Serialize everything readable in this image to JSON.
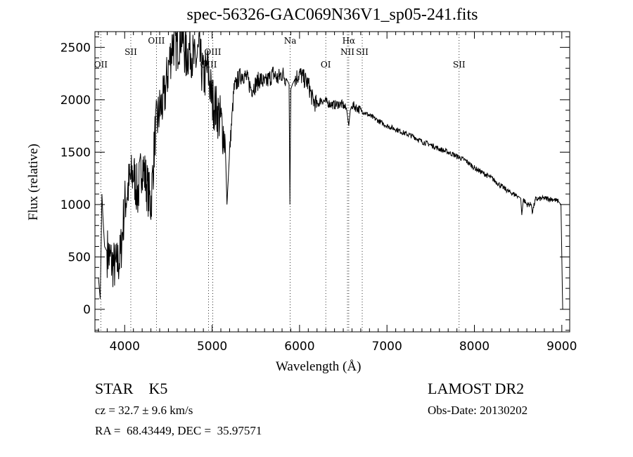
{
  "chart_data": {
    "type": "line",
    "title": "spec-56326-GAC069N36V1_sp05-241.fits",
    "xlabel": "Wavelength (Å)",
    "ylabel": "Flux (relative)",
    "xlim": [
      3660,
      9090
    ],
    "ylim": [
      -215,
      2650
    ],
    "xticks": [
      4000,
      5000,
      6000,
      7000,
      8000,
      9000
    ],
    "yticks": [
      0,
      500,
      1000,
      1500,
      2000,
      2500
    ],
    "grid": false,
    "series": [
      {
        "name": "spectrum",
        "x": [
          3700,
          3720,
          3740,
          3750,
          3770,
          3800,
          3850,
          3900,
          3950,
          4000,
          4050,
          4100,
          4150,
          4200,
          4250,
          4300,
          4350,
          4400,
          4450,
          4500,
          4550,
          4600,
          4650,
          4700,
          4750,
          4800,
          4850,
          4900,
          4950,
          5000,
          5050,
          5100,
          5150,
          5170,
          5200,
          5250,
          5300,
          5350,
          5400,
          5450,
          5500,
          5550,
          5600,
          5650,
          5700,
          5750,
          5800,
          5850,
          5880,
          5890,
          5900,
          5920,
          5950,
          6000,
          6050,
          6100,
          6150,
          6200,
          6250,
          6300,
          6350,
          6400,
          6450,
          6500,
          6540,
          6563,
          6580,
          6600,
          6700,
          6800,
          6900,
          7000,
          7100,
          7200,
          7300,
          7400,
          7500,
          7600,
          7700,
          7800,
          7900,
          8000,
          8100,
          8200,
          8300,
          8400,
          8500,
          8530,
          8542,
          8560,
          8600,
          8650,
          8662,
          8700,
          8800,
          8900,
          8960,
          8990,
          9000,
          9010
        ],
        "y": [
          300,
          100,
          1100,
          900,
          600,
          550,
          450,
          400,
          500,
          1000,
          1200,
          1300,
          1100,
          1400,
          1200,
          1000,
          1700,
          1900,
          2000,
          2300,
          2550,
          2500,
          2650,
          2400,
          2500,
          2350,
          2450,
          2200,
          2300,
          2000,
          1900,
          1800,
          1600,
          1000,
          1500,
          2100,
          2200,
          2250,
          2200,
          2100,
          2150,
          2200,
          2150,
          2200,
          2250,
          2200,
          2250,
          2200,
          2150,
          1000,
          2100,
          2150,
          2200,
          2250,
          2200,
          2150,
          2000,
          1950,
          2000,
          1980,
          1960,
          1950,
          1960,
          1950,
          1900,
          1750,
          1900,
          1950,
          1900,
          1850,
          1800,
          1750,
          1720,
          1680,
          1650,
          1600,
          1570,
          1530,
          1500,
          1460,
          1420,
          1350,
          1300,
          1250,
          1180,
          1120,
          1080,
          1060,
          900,
          1050,
          1000,
          1000,
          930,
          1050,
          1060,
          1050,
          1030,
          1000,
          500,
          0
        ]
      }
    ],
    "line_markers": [
      {
        "label": "OII",
        "wavelength": 3727,
        "row": 3
      },
      {
        "label": "SII",
        "wavelength": 4070,
        "row": 2
      },
      {
        "label": "OIII",
        "wavelength": 4363,
        "row": 1
      },
      {
        "label": "OIII",
        "wavelength": 4959,
        "row": 3
      },
      {
        "label": "OIII",
        "wavelength": 5007,
        "row": 2
      },
      {
        "label": "Na",
        "wavelength": 5893,
        "row": 1
      },
      {
        "label": "OI",
        "wavelength": 6300,
        "row": 3
      },
      {
        "label": "Hα",
        "wavelength": 6563,
        "row": 1
      },
      {
        "label": "NII",
        "wavelength": 6548,
        "row": 2
      },
      {
        "label": "SII",
        "wavelength": 6717,
        "row": 2
      },
      {
        "label": "SII",
        "wavelength": 7825,
        "row": 3
      }
    ]
  },
  "info": {
    "class": "STAR    K5",
    "survey": "LAMOST DR2",
    "cz": "cz = 32.7 ± 9.6 km/s",
    "obs_date": "Obs-Date: 20130202",
    "radec": "RA =  68.43449, DEC =  35.97571"
  }
}
